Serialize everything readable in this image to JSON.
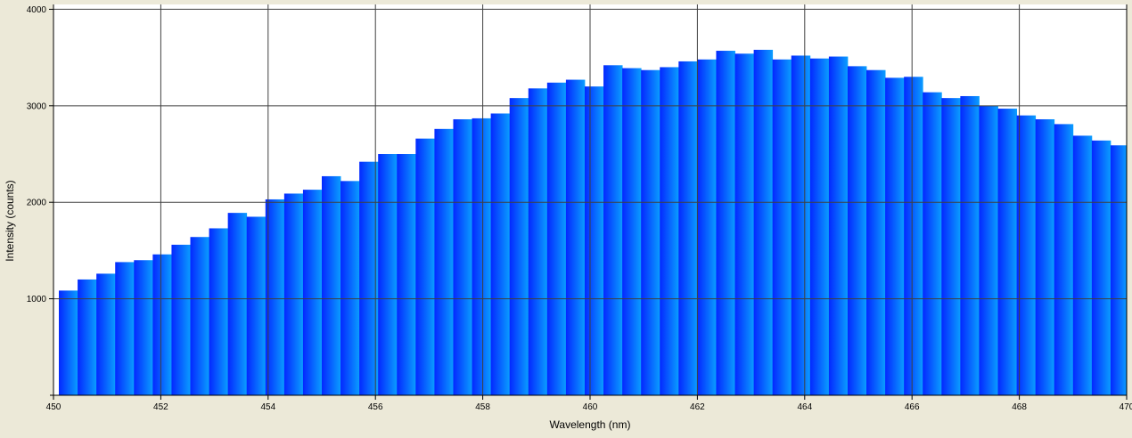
{
  "chart_data": {
    "type": "bar",
    "title": "",
    "xlabel": "Wavelength (nm)",
    "ylabel": "Intensity (counts)",
    "xlim": [
      450,
      470
    ],
    "ylim": [
      0,
      4050
    ],
    "x_ticks": [
      450,
      452,
      454,
      456,
      458,
      460,
      462,
      464,
      466,
      468,
      470
    ],
    "y_ticks": [
      1000,
      2000,
      3000,
      4000
    ],
    "grid": true,
    "bin_width": 0.35,
    "x": [
      450.1,
      450.45,
      450.8,
      451.15,
      451.5,
      451.85,
      452.2,
      452.55,
      452.9,
      453.25,
      453.6,
      453.95,
      454.3,
      454.65,
      455.0,
      455.35,
      455.7,
      456.05,
      456.4,
      456.75,
      457.1,
      457.45,
      457.8,
      458.15,
      458.5,
      458.85,
      459.2,
      459.55,
      459.9,
      460.25,
      460.6,
      460.95,
      461.3,
      461.65,
      462.0,
      462.35,
      462.7,
      463.05,
      463.4,
      463.75,
      464.1,
      464.45,
      464.8,
      465.15,
      465.5,
      465.85,
      466.2,
      466.55,
      466.9,
      467.25,
      467.6,
      467.95,
      468.3,
      468.65,
      469.0,
      469.35,
      469.7
    ],
    "values": [
      1085,
      1200,
      1260,
      1380,
      1400,
      1460,
      1560,
      1640,
      1730,
      1890,
      1850,
      2030,
      2090,
      2130,
      2270,
      2220,
      2420,
      2500,
      2500,
      2660,
      2760,
      2860,
      2870,
      2920,
      3080,
      3180,
      3240,
      3270,
      3200,
      3420,
      3390,
      3370,
      3400,
      3460,
      3480,
      3570,
      3540,
      3580,
      3480,
      3520,
      3490,
      3510,
      3410,
      3370,
      3290,
      3300,
      3140,
      3080,
      3100,
      3000,
      2970,
      2900,
      2860,
      2810,
      2690,
      2640,
      2590
    ],
    "colors": {
      "fill_left": "#0428ff",
      "fill_right": "#0a9eff",
      "background": "#ece9d8",
      "plot_bg": "#ffffff",
      "grid": "#404040"
    }
  }
}
